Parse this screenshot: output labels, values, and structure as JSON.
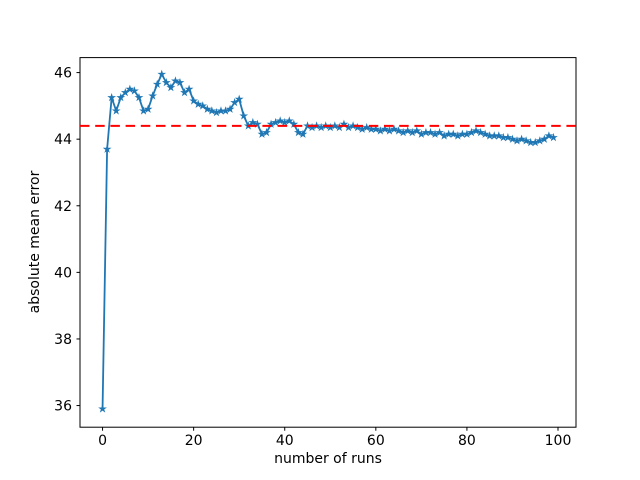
{
  "window": {
    "background": "#ffffff"
  },
  "chart_data": {
    "type": "line",
    "title": "",
    "xlabel": "number of runs",
    "ylabel": "absolute mean error",
    "xlim": [
      -4.95,
      103.95
    ],
    "ylim": [
      35.35,
      46.45
    ],
    "xticks": [
      0,
      20,
      40,
      60,
      80,
      100
    ],
    "yticks": [
      36,
      38,
      40,
      42,
      44,
      46
    ],
    "grid": false,
    "legend": "none",
    "series": [
      {
        "name": "absolute-mean-error-line",
        "type": "line",
        "color": "#1f77b4",
        "marker": "star",
        "marker_size": 4.6,
        "line_width": 1.8,
        "x": [
          0,
          1,
          2,
          3,
          4,
          5,
          6,
          7,
          8,
          9,
          10,
          11,
          12,
          13,
          14,
          15,
          16,
          17,
          18,
          19,
          20,
          21,
          22,
          23,
          24,
          25,
          26,
          27,
          28,
          29,
          30,
          31,
          32,
          33,
          34,
          35,
          36,
          37,
          38,
          39,
          40,
          41,
          42,
          43,
          44,
          45,
          46,
          47,
          48,
          49,
          50,
          51,
          52,
          53,
          54,
          55,
          56,
          57,
          58,
          59,
          60,
          61,
          62,
          63,
          64,
          65,
          66,
          67,
          68,
          69,
          70,
          71,
          72,
          73,
          74,
          75,
          76,
          77,
          78,
          79,
          80,
          81,
          82,
          83,
          84,
          85,
          86,
          87,
          88,
          89,
          90,
          91,
          92,
          93,
          94,
          95,
          96,
          97,
          98,
          99
        ],
        "y": [
          35.9,
          43.7,
          45.25,
          44.85,
          45.25,
          45.4,
          45.5,
          45.45,
          45.25,
          44.85,
          44.9,
          45.3,
          45.65,
          45.95,
          45.7,
          45.55,
          45.75,
          45.7,
          45.4,
          45.5,
          45.15,
          45.05,
          45.0,
          44.9,
          44.85,
          44.8,
          44.85,
          44.85,
          44.9,
          45.1,
          45.2,
          44.7,
          44.4,
          44.5,
          44.45,
          44.15,
          44.2,
          44.45,
          44.5,
          44.55,
          44.5,
          44.55,
          44.45,
          44.2,
          44.15,
          44.4,
          44.35,
          44.4,
          44.35,
          44.4,
          44.35,
          44.4,
          44.35,
          44.45,
          44.35,
          44.4,
          44.35,
          44.3,
          44.35,
          44.3,
          44.3,
          44.25,
          44.3,
          44.25,
          44.3,
          44.25,
          44.2,
          44.25,
          44.2,
          44.25,
          44.15,
          44.2,
          44.2,
          44.15,
          44.2,
          44.1,
          44.15,
          44.15,
          44.1,
          44.15,
          44.15,
          44.2,
          44.25,
          44.2,
          44.15,
          44.1,
          44.1,
          44.1,
          44.05,
          44.05,
          44.0,
          43.95,
          44.0,
          43.95,
          43.9,
          43.9,
          43.95,
          44.0,
          44.1,
          44.05
        ]
      },
      {
        "name": "reference-hline",
        "type": "hline",
        "color": "#ff0000",
        "linestyle": "dashed",
        "dash_pattern": [
          9.5,
          5.7
        ],
        "line_width": 2,
        "y": 44.4
      }
    ]
  }
}
